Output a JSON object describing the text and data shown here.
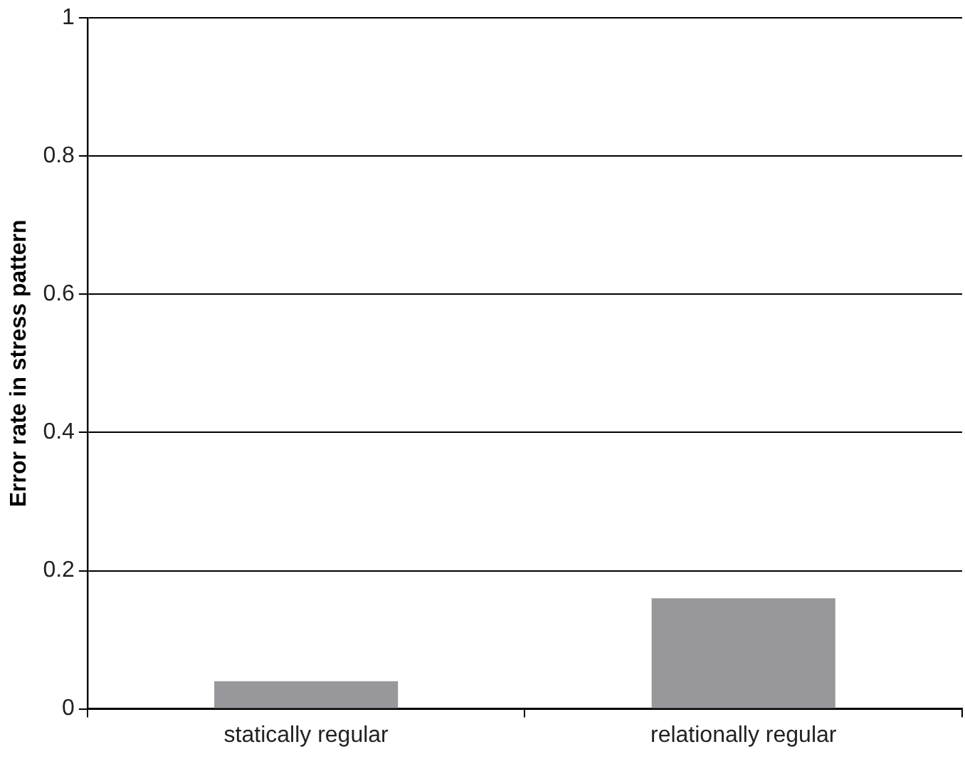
{
  "chart_data": {
    "type": "bar",
    "ylabel": "Error rate in stress pattern",
    "categories": [
      "statically regular",
      "relationally regular"
    ],
    "values": [
      0.04,
      0.16
    ],
    "color": "#98989c",
    "ylim": [
      0,
      1
    ],
    "yticks": [
      0,
      0.2,
      0.4,
      0.6,
      0.8,
      1
    ],
    "grid": "y",
    "legend": false
  }
}
